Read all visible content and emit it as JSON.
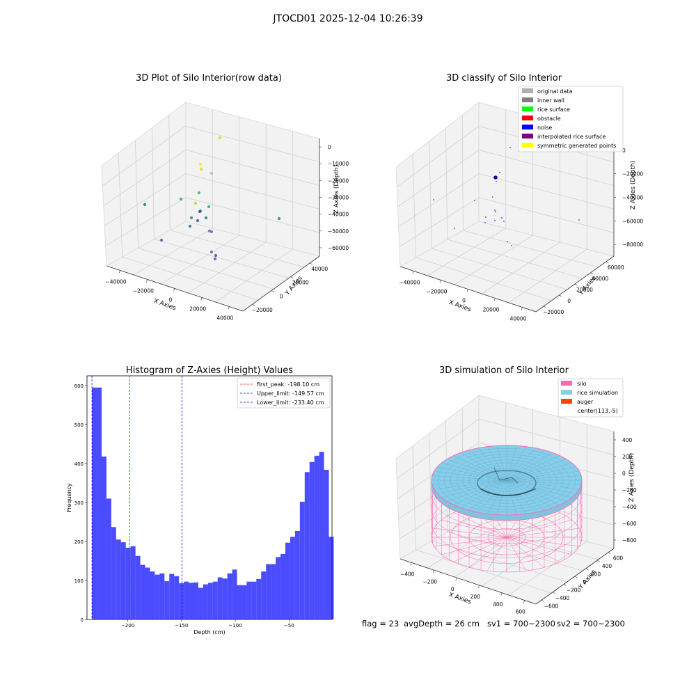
{
  "figure": {
    "title": "JTOCD01 2025-12-04 10:26:39"
  },
  "footer": {
    "flag": "flag = 23",
    "avg_depth": "avgDepth = 26 cm",
    "sv1": "sv1 = 700~2300",
    "sv2": "sv2 = 700~2300"
  },
  "chart_data": [
    {
      "type": "scatter3d",
      "title": "3D Plot of Silo Interior(row data)",
      "xlabel": "X Axies",
      "ylabel": "Y Axies",
      "zlabel": "Z Axies (Depth)",
      "x_ticks": [
        "−40000",
        "−20000",
        "0",
        "20000",
        "40000"
      ],
      "y_ticks": [
        "−20000",
        "0",
        "20000",
        "40000"
      ],
      "z_ticks": [
        "0",
        "−10000",
        "−20000",
        "−30000",
        "−40000",
        "−50000",
        "−60000"
      ],
      "colormap": "viridis",
      "note_points": "approximate projected sample of colored points"
    },
    {
      "type": "scatter3d",
      "title": "3D classify of Silo Interior",
      "xlabel": "X Axies",
      "ylabel": "Y Axies",
      "zlabel": "Z Axies (Depth)",
      "x_ticks": [
        "−40000",
        "−20000",
        "0",
        "20000",
        "40000"
      ],
      "y_ticks": [
        "−20000",
        "0",
        "20000",
        "40000",
        "60000"
      ],
      "z_ticks": [
        "0",
        "−20000",
        "−40000",
        "−60000",
        "−80000"
      ],
      "legend": [
        {
          "label": "original data",
          "color": "#b0b0b0"
        },
        {
          "label": "inner wall",
          "color": "#808080"
        },
        {
          "label": "rice surface",
          "color": "#00ff00"
        },
        {
          "label": "obstacle",
          "color": "#ff0000"
        },
        {
          "label": "noise",
          "color": "#0000ff"
        },
        {
          "label": "interpolated rice surface",
          "color": "#800080"
        },
        {
          "label": "symmetric generated points",
          "color": "#ffff00"
        }
      ]
    },
    {
      "type": "bar",
      "title": "Histogram of Z-Axies (Height) Values",
      "xlabel": "Depth (cm)",
      "ylabel": "Frequency",
      "bar_color": "#0000ff",
      "x_range": [
        -238,
        -10
      ],
      "ylim": [
        0,
        625
      ],
      "x_ticks": [
        -200,
        -150,
        -100,
        -50
      ],
      "y_ticks": [
        0,
        100,
        200,
        300,
        400,
        500,
        600
      ],
      "bin_start": -233.4,
      "bin_width": 4.5,
      "values": [
        595,
        595,
        418,
        310,
        237,
        205,
        198,
        184,
        188,
        163,
        140,
        133,
        123,
        115,
        118,
        98,
        117,
        111,
        93,
        97,
        94,
        95,
        81,
        90,
        94,
        97,
        108,
        105,
        118,
        128,
        88,
        88,
        97,
        97,
        104,
        123,
        142,
        142,
        160,
        168,
        197,
        212,
        227,
        302,
        378,
        404,
        420,
        430,
        384,
        212
      ],
      "vlines": [
        {
          "label": "first_peak: -198.10 cm",
          "x": -198.1,
          "color": "#ff0000"
        },
        {
          "label": "Upper_limit: -149.57 cm",
          "x": -149.57,
          "color": "#0000cc"
        },
        {
          "label": "Lower_limit: -233.40 cm",
          "x": -233.4,
          "color": "#0000cc"
        }
      ]
    },
    {
      "type": "surface3d",
      "title": "3D simulation of Silo Interior",
      "xlabel": "X Axies",
      "ylabel": "Y Axies",
      "zlabel": "Z Axies (Depth)",
      "x_ticks": [
        "−400",
        "−200",
        "0",
        "200",
        "400",
        "600"
      ],
      "y_ticks": [
        "−600",
        "−400",
        "−200",
        "0",
        "200",
        "400",
        "600"
      ],
      "z_ticks": [
        "400",
        "200",
        "0",
        "−200",
        "−400",
        "−600",
        "−800"
      ],
      "legend": [
        {
          "label": "silo",
          "color": "#ff69b4"
        },
        {
          "label": "rice simulation",
          "color": "#87ceeb"
        },
        {
          "label": "auger",
          "color": "#ff4500"
        },
        {
          "label": "center(113,-5)",
          "color": ""
        }
      ]
    }
  ]
}
